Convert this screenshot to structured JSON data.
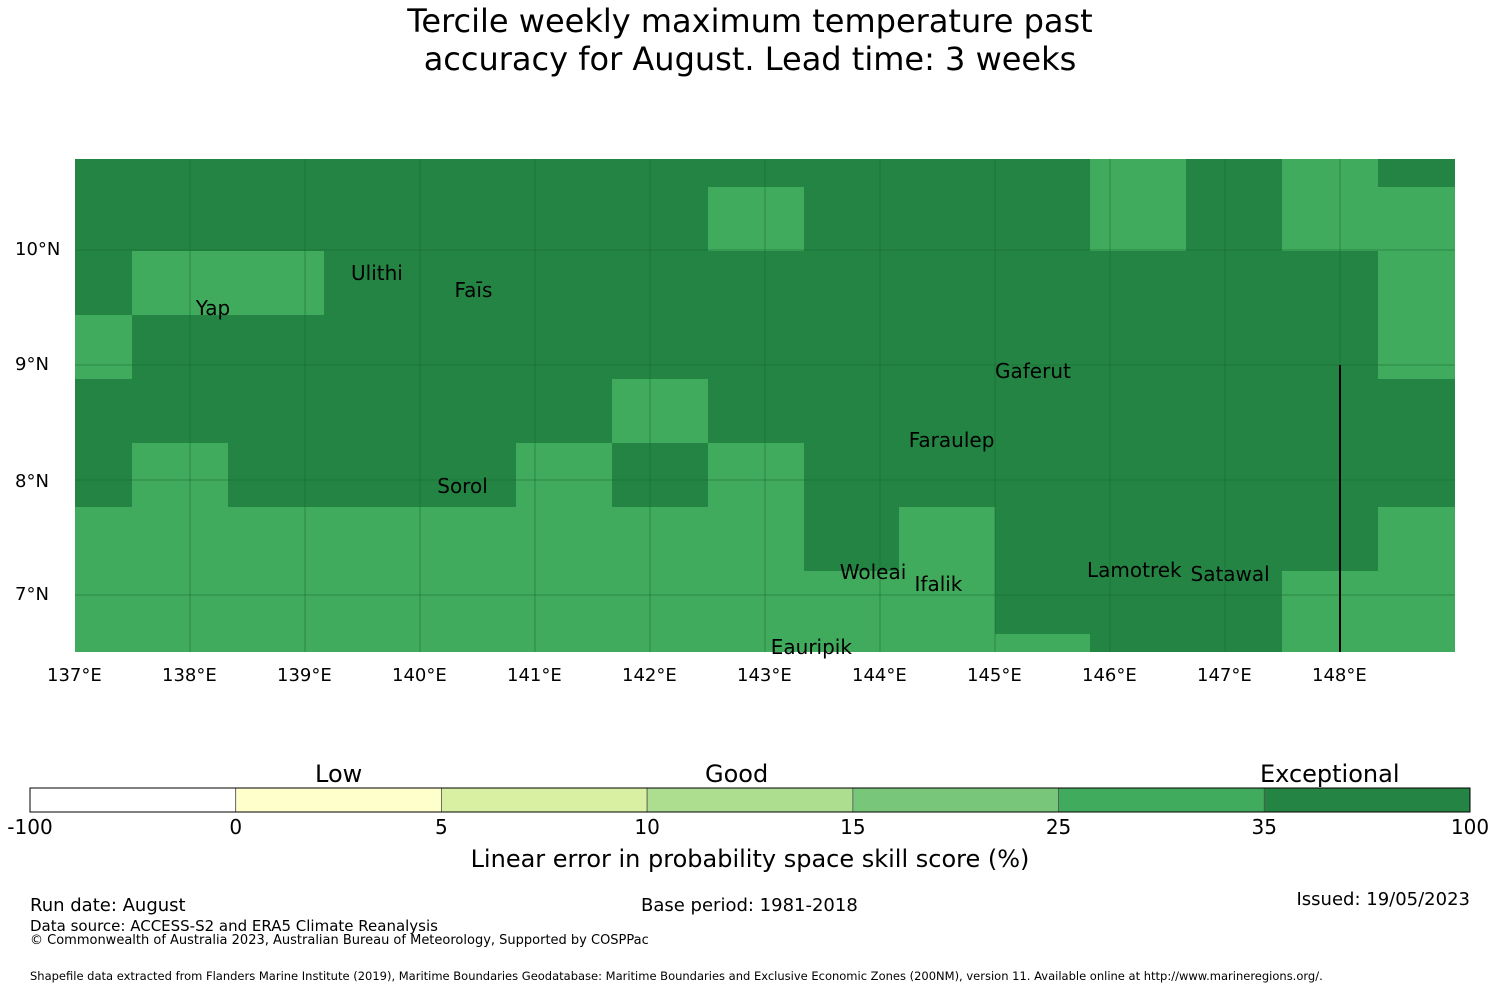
{
  "title": {
    "line1": "Tercile weekly maximum temperature past",
    "line2": "accuracy for August. Lead time: 3 weeks"
  },
  "map": {
    "lon_range": [
      137,
      149
    ],
    "lat_range": [
      6.5,
      10.8
    ],
    "x_ticks": [
      "137°E",
      "138°E",
      "139°E",
      "140°E",
      "141°E",
      "142°E",
      "143°E",
      "144°E",
      "145°E",
      "146°E",
      "147°E",
      "148°E"
    ],
    "y_ticks": [
      "10°N",
      "9°N",
      "8°N",
      "7°N"
    ],
    "colors": {
      "dark": "#238443",
      "light": "#41ab5d",
      "grid": "#1a6b32"
    },
    "places": [
      {
        "name": "Ulithi",
        "lon": 139.4,
        "lat": 9.8
      },
      {
        "name": "Faīs",
        "lon": 140.3,
        "lat": 9.65
      },
      {
        "name": "Yap",
        "lon": 138.05,
        "lat": 9.5
      },
      {
        "name": "Gaferut",
        "lon": 145.0,
        "lat": 8.95
      },
      {
        "name": "Faraulep",
        "lon": 144.25,
        "lat": 8.35
      },
      {
        "name": "Sorol",
        "lon": 140.15,
        "lat": 7.95
      },
      {
        "name": "Woleai",
        "lon": 143.65,
        "lat": 7.2
      },
      {
        "name": "Ifalik",
        "lon": 144.3,
        "lat": 7.1
      },
      {
        "name": "Lamotrek",
        "lon": 145.8,
        "lat": 7.22
      },
      {
        "name": "Satawal",
        "lon": 146.7,
        "lat": 7.18
      },
      {
        "name": "Eauripik",
        "lon": 143.05,
        "lat": 6.55
      }
    ]
  },
  "colorbar": {
    "categories": [
      "Low",
      "Good",
      "Exceptional"
    ],
    "ticks": [
      "-100",
      "0",
      "5",
      "10",
      "15",
      "25",
      "35",
      "100"
    ],
    "colors": [
      "#ffffff",
      "#ffffcc",
      "#d9f0a3",
      "#addd8e",
      "#78c679",
      "#41ab5d",
      "#238443"
    ],
    "label": "Linear error in probability space skill score (%)"
  },
  "footer": {
    "run_date": "Run date: August",
    "base_period": "Base period: 1981-2018",
    "issued": "Issued: 19/05/2023",
    "data_source": "Data source: ACCESS-S2 and ERA5 Climate Reanalysis",
    "copyright": "© Commonwealth of Australia 2023, Australian Bureau of Meteorology, Supported by COSPPac",
    "shapefile": "Shapefile data extracted from Flanders Marine Institute (2019), Maritime Boundaries Geodatabase: Maritime Boundaries and Exclusive Economic Zones (200NM), version 11. Available online at http://www.marineregions.org/."
  }
}
